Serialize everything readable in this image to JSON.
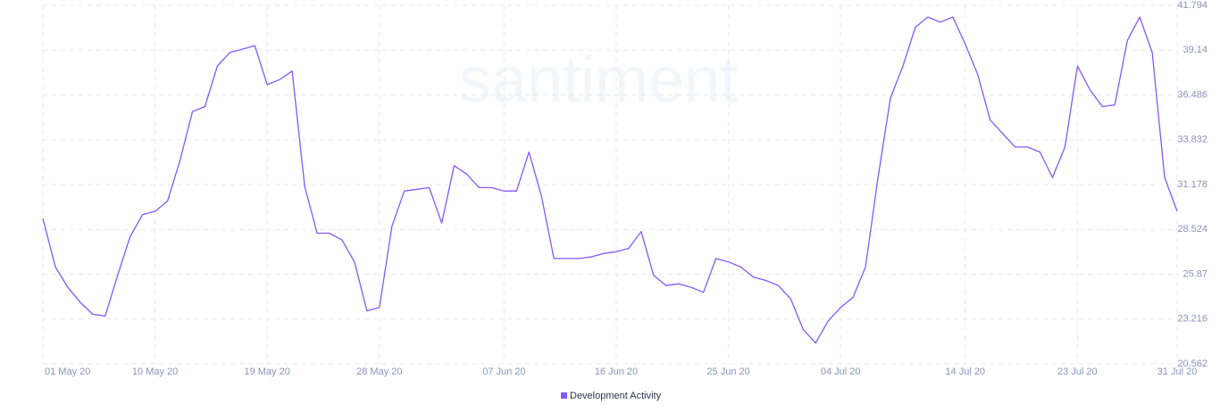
{
  "chart_data": {
    "type": "line",
    "watermark": "santiment",
    "categories": [
      "01 May 20",
      null,
      null,
      null,
      null,
      null,
      null,
      null,
      null,
      "10 May 20",
      null,
      null,
      null,
      null,
      null,
      null,
      null,
      null,
      "19 May 20",
      null,
      null,
      null,
      null,
      null,
      null,
      null,
      null,
      "28 May 20",
      null,
      null,
      null,
      null,
      null,
      null,
      null,
      null,
      null,
      "07 Jun 20",
      null,
      null,
      null,
      null,
      null,
      null,
      null,
      null,
      "16 Jun 20",
      null,
      null,
      null,
      null,
      null,
      null,
      null,
      null,
      "25 Jun 20",
      null,
      null,
      null,
      null,
      null,
      null,
      null,
      null,
      "04 Jul 20",
      null,
      null,
      null,
      null,
      null,
      null,
      null,
      null,
      null,
      "14 Jul 20",
      null,
      null,
      null,
      null,
      null,
      null,
      null,
      null,
      "23 Jul 20",
      null,
      null,
      null,
      null,
      null,
      null,
      null,
      "31 Jul 20"
    ],
    "series": [
      {
        "name": "Development Activity",
        "color": "#8358ff",
        "values": [
          29.17,
          26.3,
          25.1,
          24.2,
          23.5,
          23.4,
          25.8,
          28.1,
          29.4,
          29.6,
          30.2,
          32.6,
          35.5,
          35.8,
          38.2,
          39.0,
          39.2,
          39.4,
          37.1,
          37.4,
          37.9,
          31.1,
          28.3,
          28.3,
          27.9,
          26.6,
          23.7,
          23.9,
          28.7,
          30.8,
          30.9,
          31.0,
          28.9,
          32.3,
          31.8,
          31.0,
          31.0,
          30.8,
          30.8,
          33.1,
          30.5,
          26.8,
          26.8,
          26.8,
          26.9,
          27.1,
          27.2,
          27.4,
          28.4,
          25.8,
          25.2,
          25.3,
          25.1,
          24.8,
          26.8,
          26.6,
          26.3,
          25.7,
          25.5,
          25.2,
          24.4,
          22.6,
          21.8,
          23.1,
          23.9,
          24.5,
          26.3,
          31.6,
          36.3,
          38.2,
          40.5,
          41.1,
          40.8,
          41.1,
          39.5,
          37.7,
          35.0,
          34.2,
          33.4,
          33.4,
          33.1,
          31.6,
          33.4,
          38.2,
          36.8,
          35.8,
          35.9,
          39.7,
          41.1,
          39.0,
          31.6,
          29.6
        ]
      }
    ],
    "ylim": [
      20.562,
      41.794
    ],
    "yticks": [
      20.562,
      23.216,
      25.87,
      28.524,
      31.178,
      33.832,
      36.486,
      39.14,
      41.794
    ],
    "grid": true
  }
}
